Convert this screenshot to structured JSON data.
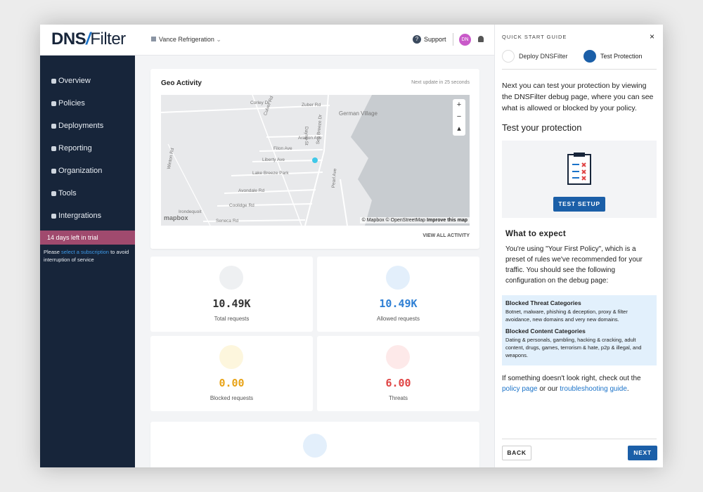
{
  "header": {
    "logo_left": "DNS",
    "logo_right": "Filter",
    "organization": "Vance Refrigeration",
    "support": "Support",
    "avatar": "DN"
  },
  "sidebar": {
    "nav": [
      "Overview",
      "Policies",
      "Deployments",
      "Reporting",
      "Organization",
      "Tools",
      "Intergrations"
    ],
    "trial": "14 days left in trial",
    "trial_note": {
      "before": "Please ",
      "link": "select a subscription",
      "after": " to avoid interruption of service"
    }
  },
  "geo": {
    "title": "Geo Activity",
    "update": "Next update in 25 seconds",
    "map_labels": [
      "Corley Dr",
      "Zuber Rd",
      "German Village",
      "Culver Rd",
      "Aragon Ave",
      "Filon Ave",
      "Liberty Ave",
      "Lake Breeze Park",
      "Avondale Rd",
      "Coolidge Rd",
      "Seneca Rd",
      "Irondequoit",
      "Winton Rd",
      "Dayne St",
      "Sea Breeze Dr",
      "Pearl Ave"
    ],
    "attribution": "© Mapbox © OpenStreetMap",
    "improve": "Improve this map",
    "mapbox": "mapbox",
    "view_all": "VIEW ALL ACTIVITY"
  },
  "stats": [
    {
      "value": "10.49K",
      "label": "Total requests"
    },
    {
      "value": "10.49K",
      "label": "Allowed requests"
    },
    {
      "value": "0.00",
      "label": "Blocked requests"
    },
    {
      "value": "6.00",
      "label": "Threats"
    }
  ],
  "guide": {
    "title": "QUICK START GUIDE",
    "close": "×",
    "tabs": [
      "Deploy DNSFilter",
      "Test Protection"
    ],
    "intro": "Next you can test your protection by viewing the DNSFilter debug page, where you can see what is allowed or blocked by your policy.",
    "test_heading": "Test your protection",
    "test_button": "TEST SETUP",
    "expect_heading": "What to expect",
    "expect_text": "You're using \"Your First Policy\", which is a preset of rules we've recommended for your traffic. You should see the following configuration on the debug page:",
    "threat_heading": "Blocked Threat Categories",
    "threat_text": "Botnet, malware, phishing & deception, proxy & filter avoidance, new domains and very new domains.",
    "content_heading": "Blocked Content Categories",
    "content_text": "Dating & personals, gambling, hacking & cracking, adult content, drugs, games, terrorism & hate, p2p & illegal, and weapons.",
    "footer": {
      "before": "If something doesn't look right, check out the ",
      "link1": "policy page",
      "middle": " or our ",
      "link2": "troubleshooting guide",
      "after": "."
    },
    "back": "BACK",
    "next": "NEXT"
  }
}
